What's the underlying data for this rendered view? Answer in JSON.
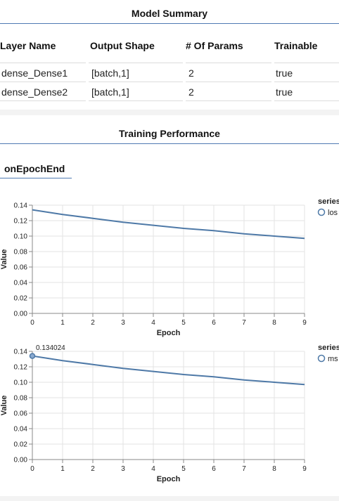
{
  "model_summary": {
    "title": "Model Summary",
    "headers": [
      "Layer Name",
      "Output Shape",
      "# Of Params",
      "Trainable"
    ],
    "rows": [
      [
        "dense_Dense1",
        "[batch,1]",
        "2",
        "true"
      ],
      [
        "dense_Dense2",
        "[batch,1]",
        "2",
        "true"
      ]
    ]
  },
  "training": {
    "title": "Training Performance",
    "tab_label": "onEpochEnd"
  },
  "chart_data": [
    {
      "type": "line",
      "xlabel": "Epoch",
      "ylabel": "Value",
      "x": [
        0,
        1,
        2,
        3,
        4,
        5,
        6,
        7,
        8,
        9
      ],
      "xlim": [
        0,
        9
      ],
      "ylim": [
        0,
        0.14
      ],
      "yticks": [
        "0.00",
        "0.02",
        "0.04",
        "0.06",
        "0.08",
        "0.10",
        "0.12",
        "0.14"
      ],
      "xticks": [
        "0",
        "1",
        "2",
        "3",
        "4",
        "5",
        "6",
        "7",
        "8",
        "9"
      ],
      "legend_title": "series",
      "legend_position": "right",
      "grid": true,
      "series": [
        {
          "name": "los",
          "color": "#4e79a7",
          "values": [
            0.134,
            0.128,
            0.123,
            0.118,
            0.114,
            0.11,
            0.107,
            0.103,
            0.1,
            0.097
          ]
        }
      ]
    },
    {
      "type": "line",
      "xlabel": "Epoch",
      "ylabel": "Value",
      "x": [
        0,
        1,
        2,
        3,
        4,
        5,
        6,
        7,
        8,
        9
      ],
      "xlim": [
        0,
        9
      ],
      "ylim": [
        0,
        0.14
      ],
      "yticks": [
        "0.00",
        "0.02",
        "0.04",
        "0.06",
        "0.08",
        "0.10",
        "0.12",
        "0.14"
      ],
      "xticks": [
        "0",
        "1",
        "2",
        "3",
        "4",
        "5",
        "6",
        "7",
        "8",
        "9"
      ],
      "legend_title": "series",
      "legend_position": "right",
      "grid": true,
      "tooltip": {
        "point_index": 0,
        "text": "0.134024"
      },
      "series": [
        {
          "name": "ms",
          "color": "#4e79a7",
          "values": [
            0.134024,
            0.128,
            0.123,
            0.118,
            0.114,
            0.11,
            0.107,
            0.103,
            0.1,
            0.097
          ]
        }
      ]
    }
  ]
}
